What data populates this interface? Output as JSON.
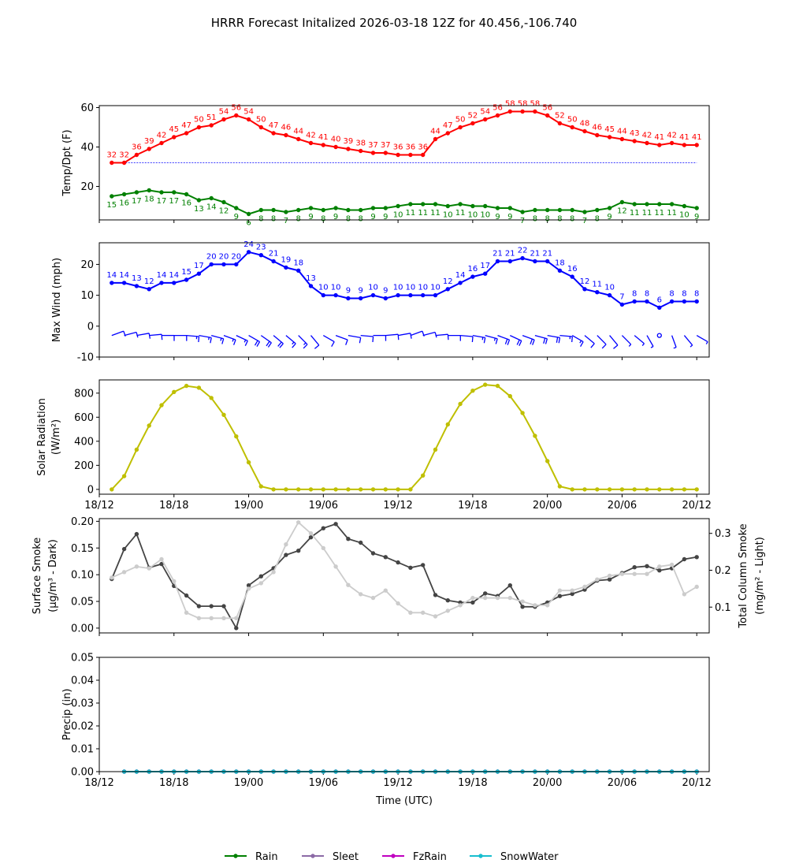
{
  "figure_title": "HRRR Forecast Initalized 2026-03-18 12Z for 40.456,-106.740",
  "chart_data": [
    {
      "id": "temp",
      "type": "line",
      "ylabel": "Temp/Dpt (F)",
      "ylim": [
        3,
        61
      ],
      "yticks": [
        20,
        40,
        60
      ],
      "x_start_hour": 1,
      "freezing_line": 32,
      "series": [
        {
          "name": "Temperature",
          "color": "#ff0000",
          "values": [
            32,
            32,
            36,
            39,
            42,
            45,
            47,
            50,
            51,
            54,
            56,
            54,
            50,
            47,
            46,
            44,
            42,
            41,
            40,
            39,
            38,
            37,
            37,
            36,
            36,
            36,
            44,
            47,
            50,
            52,
            54,
            56,
            58,
            58,
            58,
            56,
            52,
            50,
            48,
            46,
            45,
            44,
            43,
            42,
            41,
            42,
            41,
            41
          ]
        },
        {
          "name": "Dewpoint",
          "color": "#008000",
          "values": [
            15,
            16,
            17,
            18,
            17,
            17,
            16,
            13,
            14,
            12,
            9,
            6,
            8,
            8,
            7,
            8,
            9,
            8,
            9,
            8,
            8,
            9,
            9,
            10,
            11,
            11,
            11,
            10,
            11,
            10,
            10,
            9,
            9,
            7,
            8,
            8,
            8,
            8,
            7,
            8,
            9,
            12,
            11,
            11,
            11,
            11,
            10,
            9
          ]
        }
      ]
    },
    {
      "id": "wind",
      "type": "line",
      "ylabel": "Max Wind (mph)",
      "ylim": [
        -10,
        27
      ],
      "yticks": [
        -10,
        0,
        10,
        20
      ],
      "x_start_hour": 1,
      "series": [
        {
          "name": "Max Wind",
          "color": "#0000ff",
          "values": [
            14,
            14,
            13,
            12,
            14,
            14,
            15,
            17,
            20,
            20,
            20,
            24,
            23,
            21,
            19,
            18,
            13,
            10,
            10,
            9,
            9,
            10,
            9,
            10,
            10,
            10,
            10,
            12,
            14,
            16,
            17,
            21,
            21,
            22,
            21,
            21,
            18,
            16,
            12,
            11,
            10,
            7,
            8,
            8,
            6,
            8,
            8,
            8
          ]
        }
      ],
      "barb_directions_deg": [
        250,
        255,
        260,
        265,
        270,
        270,
        275,
        280,
        285,
        290,
        295,
        300,
        305,
        310,
        310,
        315,
        320,
        300,
        290,
        280,
        275,
        270,
        265,
        260,
        250,
        255,
        265,
        270,
        275,
        280,
        285,
        290,
        295,
        290,
        285,
        280,
        275,
        300,
        310,
        315,
        320,
        315,
        310,
        330,
        0,
        340,
        320,
        300
      ]
    },
    {
      "id": "solar",
      "type": "line",
      "ylabel": "Solar Radiation (W/m²)",
      "ylim": [
        -40,
        910
      ],
      "yticks": [
        0,
        200,
        400,
        600,
        800
      ],
      "x_start_hour": 1,
      "series": [
        {
          "name": "Solar Radiation",
          "color": "#bfbf00",
          "values": [
            0,
            110,
            330,
            530,
            700,
            810,
            860,
            845,
            760,
            620,
            440,
            225,
            25,
            0,
            0,
            0,
            0,
            0,
            0,
            0,
            0,
            0,
            0,
            0,
            0,
            115,
            330,
            540,
            710,
            820,
            870,
            860,
            775,
            635,
            445,
            235,
            25,
            0,
            0,
            0,
            0,
            0,
            0,
            0,
            0,
            0,
            0,
            0
          ]
        }
      ]
    },
    {
      "id": "smoke",
      "type": "line",
      "ylabel": "Surface Smoke (μg/m³ - Dark)",
      "ylabel_right": "Total Column Smoke (mg/m² - Light)",
      "ylim": [
        -0.009,
        0.205
      ],
      "yticks": [
        0.0,
        0.05,
        0.1,
        0.15,
        0.2
      ],
      "y2lim": [
        0.03,
        0.34
      ],
      "y2ticks": [
        0.1,
        0.2,
        0.3
      ],
      "x_start_hour": 1,
      "series": [
        {
          "name": "Surface Smoke",
          "color": "#444444",
          "axis": "left",
          "values": [
            0.092,
            0.148,
            0.176,
            0.113,
            0.12,
            0.079,
            0.061,
            0.041,
            0.041,
            0.041,
            0.0,
            0.08,
            0.097,
            0.112,
            0.137,
            0.145,
            0.17,
            0.187,
            0.195,
            0.167,
            0.16,
            0.14,
            0.133,
            0.123,
            0.113,
            0.118,
            0.062,
            0.052,
            0.048,
            0.048,
            0.065,
            0.06,
            0.08,
            0.04,
            0.04,
            0.048,
            0.06,
            0.064,
            0.072,
            0.089,
            0.091,
            0.103,
            0.114,
            0.116,
            0.108,
            0.112,
            0.129,
            0.133
          ]
        },
        {
          "name": "Total Column Smoke",
          "color": "#cccccc",
          "axis": "right",
          "values": [
            0.18,
            0.195,
            0.21,
            0.205,
            0.23,
            0.17,
            0.085,
            0.07,
            0.07,
            0.07,
            0.07,
            0.15,
            0.165,
            0.195,
            0.27,
            0.33,
            0.3,
            0.26,
            0.21,
            0.16,
            0.135,
            0.125,
            0.145,
            0.11,
            0.085,
            0.085,
            0.075,
            0.09,
            0.105,
            0.125,
            0.125,
            0.125,
            0.125,
            0.115,
            0.105,
            0.105,
            0.145,
            0.145,
            0.155,
            0.175,
            0.185,
            0.19,
            0.19,
            0.19,
            0.21,
            0.215,
            0.135,
            0.155
          ]
        }
      ]
    },
    {
      "id": "precip",
      "type": "line",
      "ylabel": "Precip (in)",
      "ylim": [
        0,
        0.05
      ],
      "yticks": [
        0.0,
        0.01,
        0.02,
        0.03,
        0.04,
        0.05
      ],
      "x_start_hour": 2,
      "xlabel": "Time (UTC)",
      "series": [
        {
          "name": "Rain",
          "color": "#008000",
          "values": [
            0,
            0,
            0,
            0,
            0,
            0,
            0,
            0,
            0,
            0,
            0,
            0,
            0,
            0,
            0,
            0,
            0,
            0,
            0,
            0,
            0,
            0,
            0,
            0,
            0,
            0,
            0,
            0,
            0,
            0,
            0,
            0,
            0,
            0,
            0,
            0,
            0,
            0,
            0,
            0,
            0,
            0,
            0,
            0,
            0,
            0,
            0
          ]
        },
        {
          "name": "Sleet",
          "color": "#8c6aa6",
          "values": [
            0,
            0,
            0,
            0,
            0,
            0,
            0,
            0,
            0,
            0,
            0,
            0,
            0,
            0,
            0,
            0,
            0,
            0,
            0,
            0,
            0,
            0,
            0,
            0,
            0,
            0,
            0,
            0,
            0,
            0,
            0,
            0,
            0,
            0,
            0,
            0,
            0,
            0,
            0,
            0,
            0,
            0,
            0,
            0,
            0,
            0,
            0
          ]
        },
        {
          "name": "FzRain",
          "color": "#c000c0",
          "values": [
            0,
            0,
            0,
            0,
            0,
            0,
            0,
            0,
            0,
            0,
            0,
            0,
            0,
            0,
            0,
            0,
            0,
            0,
            0,
            0,
            0,
            0,
            0,
            0,
            0,
            0,
            0,
            0,
            0,
            0,
            0,
            0,
            0,
            0,
            0,
            0,
            0,
            0,
            0,
            0,
            0,
            0,
            0,
            0,
            0,
            0,
            0
          ]
        },
        {
          "name": "SnowWater",
          "color": "#17becf",
          "values": [
            0,
            0,
            0,
            0,
            0,
            0,
            0,
            0,
            0,
            0,
            0,
            0,
            0,
            0,
            0,
            0,
            0,
            0,
            0,
            0,
            0,
            0,
            0,
            0,
            0,
            0,
            0,
            0,
            0,
            0,
            0,
            0,
            0,
            0,
            0,
            0,
            0,
            0,
            0,
            0,
            0,
            0,
            0,
            0,
            0,
            0,
            0
          ]
        }
      ]
    }
  ],
  "x_axis": {
    "range_hours": [
      0,
      49
    ],
    "ticks": [
      {
        "hour": 0,
        "label": "18/12"
      },
      {
        "hour": 6,
        "label": "18/18"
      },
      {
        "hour": 12,
        "label": "19/00"
      },
      {
        "hour": 18,
        "label": "19/06"
      },
      {
        "hour": 24,
        "label": "19/12"
      },
      {
        "hour": 30,
        "label": "19/18"
      },
      {
        "hour": 36,
        "label": "20/00"
      },
      {
        "hour": 42,
        "label": "20/06"
      },
      {
        "hour": 48,
        "label": "20/12"
      }
    ]
  },
  "legend": [
    {
      "label": "Rain",
      "color": "#008000"
    },
    {
      "label": "Sleet",
      "color": "#8c6aa6"
    },
    {
      "label": "FzRain",
      "color": "#c000c0"
    },
    {
      "label": "SnowWater",
      "color": "#17becf"
    }
  ]
}
